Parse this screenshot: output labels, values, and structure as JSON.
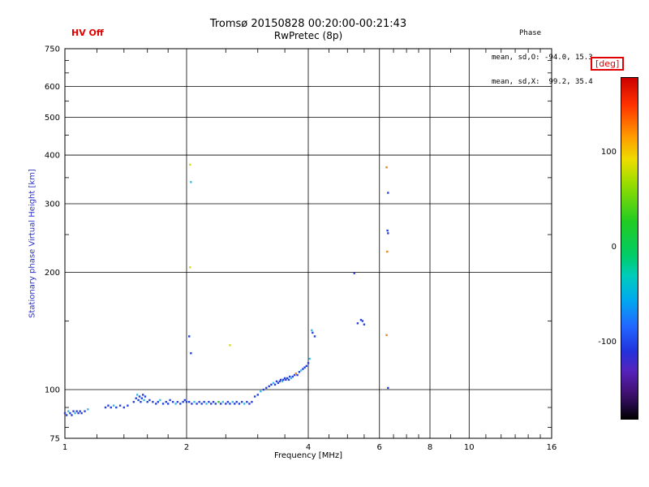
{
  "header": {
    "hv_status": "HV Off",
    "title": "Tromsø 20150828 00:20:00-00:21:43",
    "subtitle": "RwPretec (8p)",
    "stats_label": "Phase",
    "stats_o": "mean, sd,O: -94.0, 15.3",
    "stats_x": "mean, sd,X:  99.2, 35.4"
  },
  "colorbar": {
    "unit": "[deg]",
    "range": [
      -180,
      180
    ],
    "ticks": [
      {
        "value": 100,
        "label": "100"
      },
      {
        "value": 0,
        "label": "0"
      },
      {
        "value": -100,
        "label": "-100"
      }
    ]
  },
  "chart_data": {
    "type": "scatter",
    "title": "Tromsø 20150828 00:20:00-00:21:43",
    "subtitle": "RwPretec (8p)",
    "xlabel": "Frequency [MHz]",
    "ylabel": "Stationary phase Virtual Height [km]",
    "x_scale": "log",
    "y_scale": "log",
    "xlim": [
      1,
      16
    ],
    "ylim": [
      75,
      750
    ],
    "x_ticks": [
      1,
      2,
      4,
      6,
      8,
      10,
      16
    ],
    "y_ticks": [
      75,
      100,
      200,
      300,
      400,
      500,
      600,
      750
    ],
    "x_gridlines": [
      2,
      4,
      6,
      8,
      10
    ],
    "y_gridlines": [
      100,
      200,
      300,
      400,
      500,
      600
    ],
    "x_minor_ticks": [
      1.2,
      1.4,
      1.6,
      1.8,
      2.5,
      3,
      3.5,
      4.5,
      5,
      5.5,
      6.5,
      7,
      7.5,
      9,
      11,
      12,
      13,
      14,
      15
    ],
    "y_minor_ticks": [
      80,
      90,
      150,
      250,
      350,
      450,
      550,
      650,
      700
    ],
    "legend": "colorbar [deg], range -180..180, rainbow",
    "palette": {
      "b": "#2440dd",
      "c": "#38b8e8",
      "g": "#38b838",
      "y": "#d8d820",
      "o": "#e88820",
      "r": "#d82020"
    },
    "points": [
      [
        1.0,
        87,
        "b"
      ],
      [
        1.01,
        86,
        "b"
      ],
      [
        1.02,
        88,
        "c"
      ],
      [
        1.03,
        87,
        "b"
      ],
      [
        1.04,
        86,
        "b"
      ],
      [
        1.05,
        88,
        "b"
      ],
      [
        1.06,
        87,
        "c"
      ],
      [
        1.07,
        88,
        "b"
      ],
      [
        1.08,
        87,
        "b"
      ],
      [
        1.09,
        88,
        "b"
      ],
      [
        1.1,
        87,
        "b"
      ],
      [
        1.12,
        88,
        "b"
      ],
      [
        1.14,
        89,
        "c"
      ],
      [
        1.26,
        90,
        "b"
      ],
      [
        1.28,
        91,
        "b"
      ],
      [
        1.3,
        90,
        "b"
      ],
      [
        1.32,
        91,
        "c"
      ],
      [
        1.34,
        90,
        "b"
      ],
      [
        1.37,
        91,
        "b"
      ],
      [
        1.4,
        90,
        "b"
      ],
      [
        1.43,
        91,
        "b"
      ],
      [
        1.48,
        93,
        "b"
      ],
      [
        1.5,
        95,
        "b"
      ],
      [
        1.51,
        97,
        "c"
      ],
      [
        1.52,
        94,
        "b"
      ],
      [
        1.53,
        96,
        "b"
      ],
      [
        1.54,
        93,
        "b"
      ],
      [
        1.55,
        95,
        "b"
      ],
      [
        1.56,
        97,
        "b"
      ],
      [
        1.57,
        94,
        "c"
      ],
      [
        1.58,
        96,
        "b"
      ],
      [
        1.6,
        93,
        "b"
      ],
      [
        1.62,
        94,
        "b"
      ],
      [
        1.65,
        93,
        "b"
      ],
      [
        1.68,
        92,
        "b"
      ],
      [
        1.7,
        93,
        "b"
      ],
      [
        1.72,
        94,
        "c"
      ],
      [
        1.75,
        92,
        "b"
      ],
      [
        1.78,
        93,
        "b"
      ],
      [
        1.8,
        92,
        "b"
      ],
      [
        1.82,
        94,
        "b"
      ],
      [
        1.85,
        93,
        "b"
      ],
      [
        1.88,
        92,
        "c"
      ],
      [
        1.9,
        93,
        "b"
      ],
      [
        1.93,
        92,
        "b"
      ],
      [
        1.96,
        93,
        "b"
      ],
      [
        1.98,
        94,
        "b"
      ],
      [
        2.0,
        93,
        "b"
      ],
      [
        2.03,
        93,
        "b"
      ],
      [
        2.06,
        92,
        "b"
      ],
      [
        2.09,
        93,
        "c"
      ],
      [
        2.12,
        92,
        "b"
      ],
      [
        2.15,
        93,
        "b"
      ],
      [
        2.18,
        92,
        "b"
      ],
      [
        2.21,
        93,
        "b"
      ],
      [
        2.24,
        92,
        "c"
      ],
      [
        2.27,
        93,
        "b"
      ],
      [
        2.3,
        92,
        "b"
      ],
      [
        2.33,
        93,
        "b"
      ],
      [
        2.36,
        92,
        "b"
      ],
      [
        2.4,
        93,
        "g"
      ],
      [
        2.43,
        92,
        "b"
      ],
      [
        2.46,
        93,
        "c"
      ],
      [
        2.5,
        92,
        "b"
      ],
      [
        2.53,
        93,
        "b"
      ],
      [
        2.56,
        92,
        "b"
      ],
      [
        2.6,
        93,
        "c"
      ],
      [
        2.63,
        92,
        "b"
      ],
      [
        2.66,
        93,
        "b"
      ],
      [
        2.7,
        92,
        "b"
      ],
      [
        2.74,
        93,
        "b"
      ],
      [
        2.78,
        92,
        "c"
      ],
      [
        2.82,
        93,
        "b"
      ],
      [
        2.86,
        92,
        "b"
      ],
      [
        2.9,
        93,
        "b"
      ],
      [
        2.95,
        96,
        "b"
      ],
      [
        3.0,
        97,
        "b"
      ],
      [
        3.05,
        99,
        "c"
      ],
      [
        3.1,
        100,
        "b"
      ],
      [
        3.15,
        101,
        "b"
      ],
      [
        3.2,
        102,
        "b"
      ],
      [
        3.24,
        103,
        "b"
      ],
      [
        3.28,
        104,
        "c"
      ],
      [
        3.31,
        103,
        "b"
      ],
      [
        3.34,
        105,
        "b"
      ],
      [
        3.37,
        104,
        "b"
      ],
      [
        3.4,
        105,
        "b"
      ],
      [
        3.42,
        106,
        "b"
      ],
      [
        3.45,
        105,
        "c"
      ],
      [
        3.47,
        106,
        "b"
      ],
      [
        3.5,
        107,
        "b"
      ],
      [
        3.52,
        106,
        "b"
      ],
      [
        3.55,
        107,
        "b"
      ],
      [
        3.58,
        106,
        "b"
      ],
      [
        3.6,
        108,
        "b"
      ],
      [
        3.63,
        107,
        "c"
      ],
      [
        3.66,
        108,
        "b"
      ],
      [
        3.7,
        109,
        "b"
      ],
      [
        3.73,
        110,
        "o"
      ],
      [
        3.76,
        109,
        "b"
      ],
      [
        3.8,
        111,
        "b"
      ],
      [
        3.84,
        112,
        "c"
      ],
      [
        3.88,
        113,
        "b"
      ],
      [
        3.92,
        114,
        "b"
      ],
      [
        3.96,
        115,
        "b"
      ],
      [
        4.0,
        117,
        "b"
      ],
      [
        4.03,
        120,
        "c"
      ],
      [
        2.04,
        378,
        "y"
      ],
      [
        2.05,
        341,
        "c"
      ],
      [
        2.04,
        206,
        "y"
      ],
      [
        2.03,
        137,
        "b"
      ],
      [
        2.05,
        124,
        "b"
      ],
      [
        2.56,
        130,
        "y"
      ],
      [
        4.08,
        142,
        "c"
      ],
      [
        4.1,
        140,
        "b"
      ],
      [
        4.15,
        137,
        "b"
      ],
      [
        5.2,
        199,
        "b"
      ],
      [
        5.3,
        148,
        "b"
      ],
      [
        5.4,
        151,
        "b"
      ],
      [
        5.45,
        150,
        "b"
      ],
      [
        5.5,
        147,
        "b"
      ],
      [
        6.25,
        372,
        "o"
      ],
      [
        6.3,
        320,
        "b"
      ],
      [
        6.28,
        256,
        "b"
      ],
      [
        6.3,
        252,
        "b"
      ],
      [
        6.27,
        226,
        "o"
      ],
      [
        6.25,
        138,
        "o"
      ],
      [
        6.3,
        101,
        "b"
      ]
    ]
  }
}
